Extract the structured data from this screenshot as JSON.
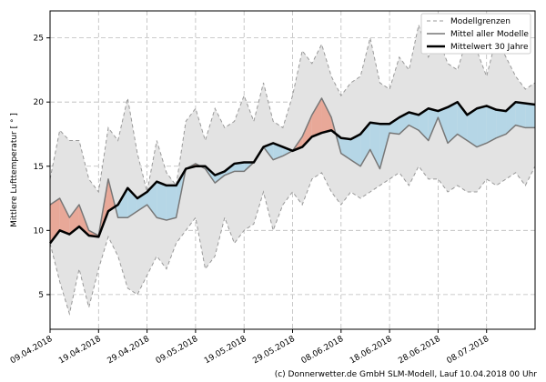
{
  "chart_data": {
    "type": "line",
    "ylabel": "Mittlere Lufttemperatur [ ° ]",
    "footer": "(c) Donnerwetter.de GmbH SLM-Modell, Lauf 10.04.2018 00 Uhr",
    "x": [
      "2018-04-09",
      "2018-04-11",
      "2018-04-13",
      "2018-04-15",
      "2018-04-17",
      "2018-04-19",
      "2018-04-21",
      "2018-04-23",
      "2018-04-25",
      "2018-04-27",
      "2018-04-29",
      "2018-05-01",
      "2018-05-03",
      "2018-05-05",
      "2018-05-07",
      "2018-05-09",
      "2018-05-11",
      "2018-05-13",
      "2018-05-15",
      "2018-05-17",
      "2018-05-19",
      "2018-05-21",
      "2018-05-23",
      "2018-05-25",
      "2018-05-27",
      "2018-05-29",
      "2018-05-31",
      "2018-06-02",
      "2018-06-04",
      "2018-06-06",
      "2018-06-08",
      "2018-06-10",
      "2018-06-12",
      "2018-06-14",
      "2018-06-16",
      "2018-06-18",
      "2018-06-20",
      "2018-06-22",
      "2018-06-24",
      "2018-06-26",
      "2018-06-28",
      "2018-06-30",
      "2018-07-02",
      "2018-07-04",
      "2018-07-06",
      "2018-07-08",
      "2018-07-10",
      "2018-07-12",
      "2018-07-14",
      "2018-07-16",
      "2018-07-18"
    ],
    "series": [
      {
        "name": "Modellgrenzen",
        "color": "#999999",
        "upper": [
          14,
          17.8,
          17,
          17,
          14,
          13,
          18,
          17,
          20.3,
          16,
          13,
          17,
          14.5,
          13.5,
          18.5,
          19.5,
          17,
          19.5,
          18,
          18.5,
          20.5,
          18.5,
          21.5,
          18.5,
          18,
          20.5,
          24,
          23,
          24.5,
          22,
          20.5,
          21.5,
          22,
          25,
          21.5,
          21,
          23.5,
          22.5,
          26,
          23.5,
          25,
          23,
          22.5,
          25,
          24,
          22,
          25,
          23.5,
          22,
          21,
          21.5
        ],
        "lower": [
          9,
          6,
          3.5,
          7,
          4,
          7,
          9.5,
          8,
          5.5,
          5,
          6.5,
          8,
          7,
          9,
          10,
          11,
          7,
          8,
          11,
          9,
          10,
          10.5,
          13,
          10,
          12,
          13,
          12,
          14,
          14.5,
          13,
          12,
          13,
          12.5,
          13,
          13.5,
          14,
          14.5,
          13.5,
          15,
          14,
          14,
          13,
          13.5,
          13,
          13,
          14,
          13.5,
          14,
          14.5,
          13.5,
          15
        ]
      },
      {
        "name": "Mittel aller Modelle",
        "color": "#777777",
        "values": [
          12,
          12.5,
          11,
          12,
          10,
          9.6,
          14,
          11,
          11,
          11.5,
          12,
          11,
          10.8,
          11,
          14.8,
          15.2,
          14.8,
          13.7,
          14.3,
          14.6,
          14.6,
          15.3,
          16.5,
          15.5,
          15.8,
          16.2,
          17.3,
          19,
          20.3,
          18.8,
          16,
          15.5,
          15,
          16.3,
          14.8,
          17.6,
          17.5,
          18.2,
          17.8,
          17,
          18.8,
          16.8,
          17.5,
          17,
          16.5,
          16.8,
          17.2,
          17.5,
          18.2,
          18,
          18
        ]
      },
      {
        "name": "Mittelwert 30 Jahre",
        "color": "#000000",
        "values": [
          9,
          10,
          9.7,
          10.3,
          9.6,
          9.5,
          11.5,
          12,
          13.3,
          12.5,
          13,
          13.8,
          13.5,
          13.5,
          14.8,
          15,
          15,
          14.3,
          14.6,
          15.2,
          15.3,
          15.3,
          16.5,
          16.8,
          16.5,
          16.2,
          16.5,
          17.3,
          17.6,
          17.8,
          17.2,
          17.1,
          17.5,
          18.4,
          18.3,
          18.3,
          18.8,
          19.2,
          19,
          19.5,
          19.3,
          19.6,
          20,
          19,
          19.5,
          19.7,
          19.4,
          19.3,
          20,
          19.9,
          19.8
        ]
      }
    ],
    "band_color": "#e3e3e3",
    "above_color": "#e8a898",
    "below_color": "#b5d6e6",
    "xlim": [
      "2018-04-09",
      "2018-07-18"
    ],
    "xticks": [
      {
        "value": "2018-04-09",
        "label": "09.04.2018"
      },
      {
        "value": "2018-04-19",
        "label": "19.04.2018"
      },
      {
        "value": "2018-04-29",
        "label": "29.04.2018"
      },
      {
        "value": "2018-05-09",
        "label": "09.05.2018"
      },
      {
        "value": "2018-05-19",
        "label": "19.05.2018"
      },
      {
        "value": "2018-05-29",
        "label": "29.05.2018"
      },
      {
        "value": "2018-06-08",
        "label": "08.06.2018"
      },
      {
        "value": "2018-06-18",
        "label": "18.06.2018"
      },
      {
        "value": "2018-06-28",
        "label": "28.06.2018"
      },
      {
        "value": "2018-07-08",
        "label": "08.07.2018"
      }
    ],
    "ylim": [
      2.3,
      27.1
    ],
    "yticks": [
      5,
      10,
      15,
      20,
      25
    ],
    "grid": true,
    "legend": "upper right"
  }
}
